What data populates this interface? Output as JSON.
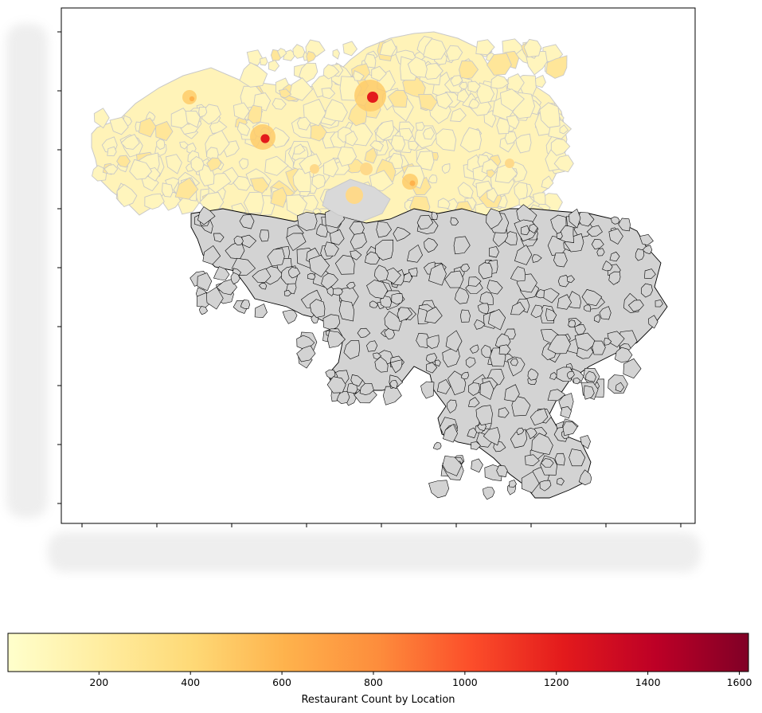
{
  "colorbar": {
    "label": "Restaurant Count by Location",
    "min": 1,
    "max": 1620,
    "ticks": [
      200,
      400,
      600,
      800,
      1000,
      1200,
      1400,
      1600
    ],
    "tick_labels": [
      "200",
      "400",
      "600",
      "800",
      "1000",
      "1200",
      "1400",
      "1600"
    ],
    "colormap": "YlOrRd",
    "color_stops": [
      "#ffffcc",
      "#ffeda0",
      "#fed976",
      "#feb24c",
      "#fd8d3c",
      "#fc4e2a",
      "#e31a1c",
      "#bd0026",
      "#800026"
    ]
  },
  "map": {
    "missing_color": "#d3d3d3",
    "missing_edge_color": "#000000",
    "data_edge_color": "#c8c8c8",
    "hotspots": [
      {
        "name": "",
        "count": 1250
      },
      {
        "name": "",
        "count": 1300
      },
      {
        "name": "",
        "count": 550
      },
      {
        "name": "",
        "count": 700
      }
    ]
  },
  "axes": {
    "y_ticks_count": 8,
    "x_ticks_count": 9
  }
}
